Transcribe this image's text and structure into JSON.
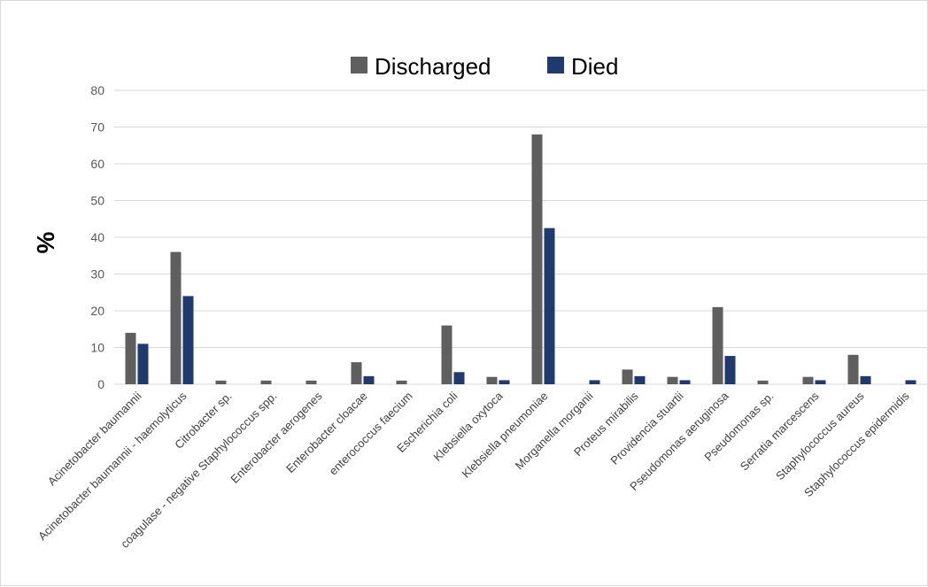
{
  "chart_data": {
    "type": "bar",
    "ylabel": "%",
    "ylim": [
      0,
      80
    ],
    "yticks": [
      0,
      10,
      20,
      30,
      40,
      50,
      60,
      70,
      80
    ],
    "grid": true,
    "legend_position": "top-center",
    "categories": [
      "Acinetobacter baumannii",
      "Acinetobacter baumannii - haemolyticus",
      "Citrobacter sp.",
      "coagulase - negative Staphylococcus spp.",
      "Enterobacter aerogenes",
      "Enterobacter cloacae",
      "enterococcus faecium",
      "Escherichia coli",
      "Klebsiella oxytoca",
      "Klebsiella pneumoniae",
      "Morganella morganii",
      "Proteus mirabilis",
      "Providencia stuartii",
      "Pseudomonas aeruginosa",
      "Pseudomonas sp.",
      "Serratia marcescens",
      "Staphylococcus aureus",
      "Staphylococcus epidermidis"
    ],
    "series": [
      {
        "name": "Discharged",
        "color": "#5f5f5f",
        "values": [
          14,
          36,
          1,
          1,
          1,
          6,
          1,
          16,
          2,
          68,
          0,
          4,
          2,
          21,
          1,
          2,
          8,
          0
        ]
      },
      {
        "name": "Died",
        "color": "#1f3a6e",
        "values": [
          11,
          24,
          0,
          0,
          0,
          2.2,
          0,
          3.3,
          1.1,
          42.5,
          1.1,
          2.2,
          1.1,
          7.7,
          0,
          1.1,
          2.2,
          1.1
        ]
      }
    ]
  }
}
